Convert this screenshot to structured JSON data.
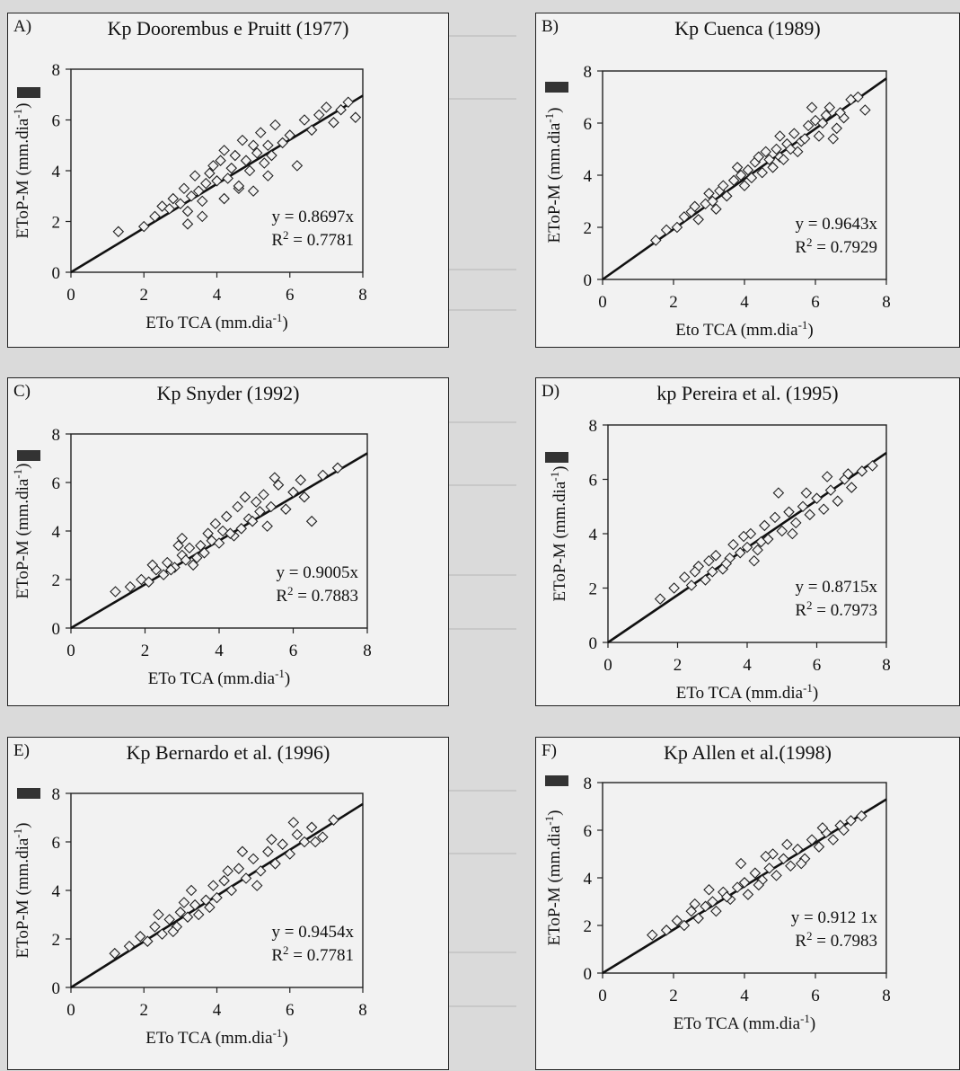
{
  "panels": [
    {
      "letter": "A)",
      "title": "Kp Doorembus e Pruitt (1977)",
      "xlabel": "ETo TCA (mm.dia",
      "ylabel": "EToP-M (mm.dia",
      "unit_sup": "-1",
      "equation": "y = 0.8697x",
      "r2_value": " = 0.7781",
      "chart_data": {
        "type": "scatter",
        "xlim": [
          0,
          8
        ],
        "ylim": [
          0,
          8
        ],
        "xticks": [
          0,
          2,
          4,
          6,
          8
        ],
        "yticks": [
          0,
          2,
          4,
          6,
          8
        ],
        "slope": 0.8697,
        "r2": 0.7781,
        "x": [
          1.3,
          2.0,
          2.3,
          2.5,
          2.7,
          2.8,
          3.0,
          3.1,
          3.2,
          3.3,
          3.4,
          3.5,
          3.6,
          3.7,
          3.8,
          3.9,
          4.0,
          4.1,
          4.2,
          4.3,
          4.4,
          4.5,
          4.6,
          4.7,
          4.8,
          4.9,
          5.0,
          5.1,
          5.2,
          5.3,
          5.4,
          5.5,
          5.6,
          5.8,
          6.0,
          6.2,
          6.4,
          6.6,
          6.8,
          7.0,
          7.2,
          7.4,
          7.6,
          7.8,
          3.2,
          3.6,
          4.2,
          4.6,
          5.0,
          5.4
        ],
        "y": [
          1.6,
          1.8,
          2.2,
          2.6,
          2.5,
          2.9,
          2.7,
          3.3,
          2.4,
          3.0,
          3.8,
          3.2,
          2.8,
          3.5,
          3.9,
          4.2,
          3.6,
          4.4,
          4.8,
          3.7,
          4.1,
          4.6,
          3.3,
          5.2,
          4.4,
          4.0,
          5.0,
          4.7,
          5.5,
          4.3,
          5.0,
          4.6,
          5.8,
          5.1,
          5.4,
          4.2,
          6.0,
          5.6,
          6.2,
          6.5,
          5.9,
          6.4,
          6.7,
          6.1,
          1.9,
          2.2,
          2.9,
          3.4,
          3.2,
          3.8
        ]
      }
    },
    {
      "letter": "B)",
      "title": "Kp Cuenca (1989)",
      "xlabel": "Eto TCA (mm.dia",
      "ylabel": "EToP-M (mm.dia",
      "unit_sup": "-1",
      "equation": "y = 0.9643x",
      "r2_value": " = 0.7929",
      "chart_data": {
        "type": "scatter",
        "xlim": [
          0,
          8
        ],
        "ylim": [
          0,
          8
        ],
        "xticks": [
          0,
          2,
          4,
          6,
          8
        ],
        "yticks": [
          0,
          2,
          4,
          6,
          8
        ],
        "slope": 0.9643,
        "r2": 0.7929,
        "x": [
          1.5,
          1.8,
          2.1,
          2.3,
          2.5,
          2.7,
          2.9,
          3.1,
          3.3,
          3.5,
          3.7,
          3.9,
          4.0,
          4.1,
          4.3,
          4.5,
          4.7,
          4.9,
          5.0,
          5.2,
          5.4,
          5.5,
          5.6,
          5.8,
          6.0,
          6.1,
          6.3,
          6.4,
          6.6,
          6.8,
          7.0,
          7.2,
          7.4,
          2.6,
          3.0,
          3.4,
          3.8,
          4.2,
          4.6,
          5.0,
          5.3,
          5.7,
          6.2,
          6.5,
          3.2,
          4.4,
          4.8,
          5.1,
          5.9,
          6.7
        ],
        "y": [
          1.5,
          1.9,
          2.0,
          2.4,
          2.6,
          2.3,
          2.9,
          3.0,
          3.4,
          3.2,
          3.8,
          4.0,
          3.6,
          4.2,
          4.5,
          4.1,
          4.6,
          5.0,
          4.7,
          5.2,
          5.6,
          4.9,
          5.3,
          5.9,
          6.1,
          5.5,
          6.3,
          6.6,
          5.8,
          6.2,
          6.9,
          7.0,
          6.5,
          2.8,
          3.3,
          3.6,
          4.3,
          3.9,
          4.9,
          5.5,
          5.0,
          5.4,
          6.0,
          5.4,
          2.7,
          4.7,
          4.3,
          4.6,
          6.6,
          6.4
        ]
      }
    },
    {
      "letter": "C)",
      "title": "Kp Snyder (1992)",
      "xlabel": "ETo TCA (mm.dia",
      "ylabel": "EToP-M (mm.dia",
      "unit_sup": "-1",
      "equation": "y = 0.9005x",
      "r2_value": " = 0.7883",
      "chart_data": {
        "type": "scatter",
        "xlim": [
          0,
          8
        ],
        "ylim": [
          0,
          8
        ],
        "xticks": [
          0,
          2,
          4,
          6,
          8
        ],
        "yticks": [
          0,
          2,
          4,
          6,
          8
        ],
        "slope": 0.9005,
        "r2": 0.7883,
        "x": [
          1.2,
          1.6,
          1.9,
          2.1,
          2.3,
          2.5,
          2.6,
          2.8,
          3.0,
          3.1,
          3.2,
          3.4,
          3.5,
          3.6,
          3.8,
          3.9,
          4.0,
          4.1,
          4.2,
          4.4,
          4.5,
          4.6,
          4.8,
          5.0,
          5.1,
          5.2,
          5.4,
          5.6,
          5.8,
          6.0,
          6.2,
          6.5,
          6.8,
          7.2,
          2.2,
          2.7,
          2.9,
          3.3,
          3.7,
          4.3,
          4.7,
          5.3,
          5.5,
          6.3,
          3.0,
          4.9
        ],
        "y": [
          1.5,
          1.7,
          2.0,
          1.9,
          2.4,
          2.2,
          2.7,
          2.5,
          3.0,
          2.8,
          3.3,
          2.9,
          3.4,
          3.1,
          3.6,
          4.3,
          3.5,
          4.0,
          4.6,
          3.8,
          5.0,
          4.1,
          4.5,
          5.2,
          4.8,
          5.5,
          5.0,
          5.9,
          4.9,
          5.6,
          6.1,
          4.4,
          6.3,
          6.6,
          2.6,
          2.4,
          3.4,
          2.6,
          3.9,
          3.9,
          5.4,
          4.2,
          6.2,
          5.4,
          3.7,
          4.4
        ]
      }
    },
    {
      "letter": "D)",
      "title": "kp Pereira et al. (1995)",
      "xlabel": "ETo TCA (mm.dia",
      "ylabel": "EToP-M (mm.dia",
      "unit_sup": "-1",
      "equation": "y = 0.8715x",
      "r2_value": " = 0.7973",
      "chart_data": {
        "type": "scatter",
        "xlim": [
          0,
          8
        ],
        "ylim": [
          0,
          8
        ],
        "xticks": [
          0,
          2,
          4,
          6,
          8
        ],
        "yticks": [
          0,
          2,
          4,
          6,
          8
        ],
        "slope": 0.8715,
        "r2": 0.7973,
        "x": [
          1.5,
          1.9,
          2.2,
          2.4,
          2.6,
          2.8,
          3.0,
          3.1,
          3.3,
          3.5,
          3.6,
          3.8,
          4.0,
          4.1,
          4.3,
          4.5,
          4.6,
          4.8,
          5.0,
          5.2,
          5.4,
          5.6,
          5.8,
          6.0,
          6.2,
          6.4,
          6.6,
          6.8,
          7.0,
          7.3,
          7.6,
          2.5,
          2.9,
          3.4,
          3.9,
          4.4,
          4.9,
          5.3,
          5.7,
          6.3,
          6.9,
          4.2
        ],
        "y": [
          1.6,
          2.0,
          2.4,
          2.1,
          2.8,
          2.3,
          2.6,
          3.2,
          2.7,
          3.1,
          3.6,
          3.3,
          3.5,
          4.0,
          3.4,
          4.3,
          3.8,
          4.6,
          4.1,
          4.8,
          4.4,
          5.0,
          4.7,
          5.3,
          4.9,
          5.6,
          5.2,
          6.0,
          5.7,
          6.3,
          6.5,
          2.6,
          3.0,
          2.9,
          3.9,
          3.7,
          5.5,
          4.0,
          5.5,
          6.1,
          6.2,
          3.0
        ]
      }
    },
    {
      "letter": "E)",
      "title": "Kp Bernardo et al. (1996)",
      "xlabel": "ETo TCA (mm.dia",
      "ylabel": "EToP-M (mm.dia",
      "unit_sup": "-1",
      "equation": "y = 0.9454x",
      "r2_value": " = 0.7781",
      "chart_data": {
        "type": "scatter",
        "xlim": [
          0,
          8
        ],
        "ylim": [
          0,
          8
        ],
        "xticks": [
          0,
          2,
          4,
          6,
          8
        ],
        "yticks": [
          0,
          2,
          4,
          6,
          8
        ],
        "slope": 0.9454,
        "r2": 0.7781,
        "x": [
          1.2,
          1.6,
          1.9,
          2.1,
          2.3,
          2.5,
          2.7,
          2.9,
          3.0,
          3.2,
          3.4,
          3.5,
          3.7,
          3.9,
          4.0,
          4.2,
          4.4,
          4.6,
          4.8,
          5.0,
          5.2,
          5.4,
          5.6,
          5.8,
          6.0,
          6.2,
          6.4,
          6.6,
          6.9,
          7.2,
          2.4,
          2.8,
          3.3,
          3.8,
          4.3,
          4.7,
          5.1,
          5.5,
          6.1,
          6.7,
          3.1
        ],
        "y": [
          1.4,
          1.7,
          2.1,
          1.9,
          2.5,
          2.2,
          2.8,
          2.5,
          3.1,
          2.9,
          3.4,
          3.0,
          3.6,
          4.2,
          3.7,
          4.4,
          4.0,
          4.9,
          4.5,
          5.3,
          4.8,
          5.6,
          5.1,
          5.9,
          5.5,
          6.3,
          6.0,
          6.6,
          6.2,
          6.9,
          3.0,
          2.3,
          4.0,
          3.3,
          4.8,
          5.6,
          4.2,
          6.1,
          6.8,
          6.0,
          3.5
        ]
      }
    },
    {
      "letter": "F)",
      "title": "Kp Allen et al.(1998)",
      "xlabel": "ETo TCA (mm.dia",
      "ylabel": "EToP-M (mm.dia",
      "unit_sup": "-1",
      "equation": "y = 0.912 1x",
      "r2_value": " = 0.7983",
      "chart_data": {
        "type": "scatter",
        "xlim": [
          0,
          8
        ],
        "ylim": [
          0,
          8
        ],
        "xticks": [
          0,
          2,
          4,
          6,
          8
        ],
        "yticks": [
          0,
          2,
          4,
          6,
          8
        ],
        "slope": 0.9121,
        "r2": 0.7983,
        "x": [
          1.4,
          1.8,
          2.1,
          2.3,
          2.5,
          2.7,
          2.9,
          3.1,
          3.2,
          3.4,
          3.6,
          3.8,
          4.0,
          4.1,
          4.3,
          4.5,
          4.7,
          4.9,
          5.1,
          5.3,
          5.5,
          5.7,
          5.9,
          6.1,
          6.3,
          6.5,
          6.7,
          7.0,
          7.3,
          2.6,
          3.0,
          3.5,
          3.9,
          4.4,
          4.8,
          5.2,
          5.6,
          6.2,
          6.8,
          4.6
        ],
        "y": [
          1.6,
          1.8,
          2.2,
          2.0,
          2.6,
          2.3,
          2.8,
          3.0,
          2.6,
          3.4,
          3.1,
          3.6,
          3.8,
          3.3,
          4.2,
          3.9,
          4.4,
          4.1,
          4.8,
          4.5,
          5.2,
          4.8,
          5.6,
          5.3,
          5.9,
          5.6,
          6.2,
          6.4,
          6.6,
          2.9,
          3.5,
          3.2,
          4.6,
          3.7,
          5.0,
          5.4,
          4.6,
          6.1,
          6.0,
          4.9
        ]
      }
    }
  ]
}
